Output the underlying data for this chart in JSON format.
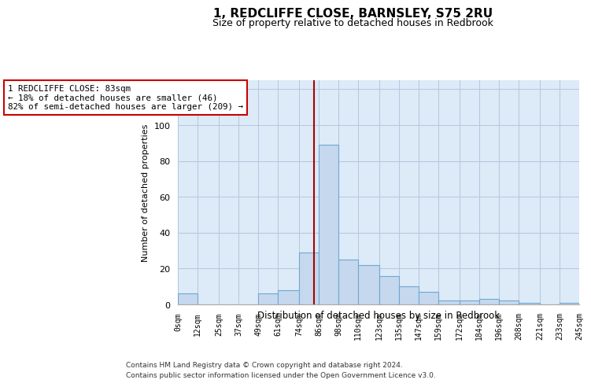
{
  "title1": "1, REDCLIFFE CLOSE, BARNSLEY, S75 2RU",
  "title2": "Size of property relative to detached houses in Redbrook",
  "xlabel": "Distribution of detached houses by size in Redbrook",
  "ylabel": "Number of detached properties",
  "bar_edges": [
    0,
    12,
    25,
    37,
    49,
    61,
    74,
    86,
    98,
    110,
    123,
    135,
    147,
    159,
    172,
    184,
    196,
    208,
    221,
    233,
    245
  ],
  "bar_heights": [
    6,
    0,
    0,
    0,
    6,
    8,
    29,
    89,
    25,
    22,
    16,
    10,
    7,
    2,
    2,
    3,
    2,
    1,
    0,
    1
  ],
  "bar_color": "#c5d8ee",
  "bar_edge_color": "#6fa8d0",
  "vline_x": 83,
  "annotation_text": "1 REDCLIFFE CLOSE: 83sqm\n← 18% of detached houses are smaller (46)\n82% of semi-detached houses are larger (209) →",
  "annotation_box_color": "#ffffff",
  "annotation_box_edge_color": "#cc0000",
  "vline_color": "#aa0000",
  "bg_color": "#ddeaf7",
  "ylim": [
    0,
    125
  ],
  "xlim": [
    0,
    245
  ],
  "yticks": [
    0,
    20,
    40,
    60,
    80,
    100,
    120
  ],
  "xtick_labels": [
    "0sqm",
    "12sqm",
    "25sqm",
    "37sqm",
    "49sqm",
    "61sqm",
    "74sqm",
    "86sqm",
    "98sqm",
    "110sqm",
    "123sqm",
    "135sqm",
    "147sqm",
    "159sqm",
    "172sqm",
    "184sqm",
    "196sqm",
    "208sqm",
    "221sqm",
    "233sqm",
    "245sqm"
  ],
  "xtick_positions": [
    0,
    12,
    25,
    37,
    49,
    61,
    74,
    86,
    98,
    110,
    123,
    135,
    147,
    159,
    172,
    184,
    196,
    208,
    221,
    233,
    245
  ],
  "footer1": "Contains HM Land Registry data © Crown copyright and database right 2024.",
  "footer2": "Contains public sector information licensed under the Open Government Licence v3.0.",
  "grid_color": "#b0c8e0"
}
